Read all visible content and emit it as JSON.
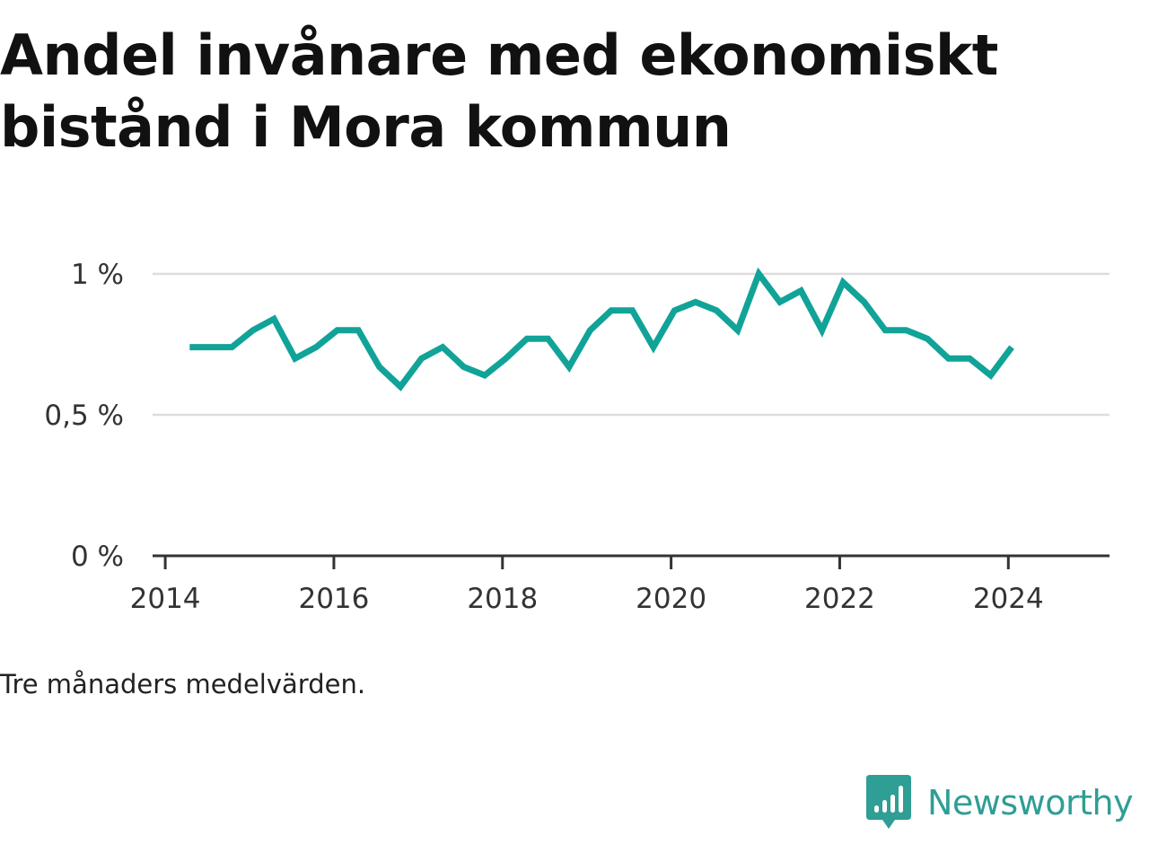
{
  "title": "Andel invånare med ekonomiskt bistånd i Mora kommun",
  "note": "Tre månaders medelvärden.",
  "brand": {
    "name": "Newsworthy",
    "logo_icon": "bar-chart-speech-bubble-icon",
    "color": "#2f9e94"
  },
  "colors": {
    "line": "#11a398",
    "grid": "#dddddd",
    "axis": "#333333"
  },
  "chart_data": {
    "type": "line",
    "title": "Andel invånare med ekonomiskt bistånd i Mora kommun",
    "xlabel": "",
    "ylabel": "",
    "xlim": [
      2013.85,
      2025.2
    ],
    "ylim": [
      0,
      1
    ],
    "y_ticks": [
      {
        "value": 0,
        "label": "0 %"
      },
      {
        "value": 0.5,
        "label": "0,5 %"
      },
      {
        "value": 1,
        "label": "1 %"
      }
    ],
    "x_ticks": [
      {
        "value": 2014,
        "label": "2014"
      },
      {
        "value": 2016,
        "label": "2016"
      },
      {
        "value": 2018,
        "label": "2018"
      },
      {
        "value": 2020,
        "label": "2020"
      },
      {
        "value": 2022,
        "label": "2022"
      },
      {
        "value": 2024,
        "label": "2024"
      }
    ],
    "grid": true,
    "legend": "none",
    "series": [
      {
        "x": [
          2014.29,
          2014.54,
          2014.79,
          2015.04,
          2015.29,
          2015.54,
          2015.79,
          2016.04,
          2016.29,
          2016.54,
          2016.79,
          2017.04,
          2017.29,
          2017.54,
          2017.79,
          2018.04,
          2018.29,
          2018.54,
          2018.79,
          2019.04,
          2019.29,
          2019.54,
          2019.79,
          2020.04,
          2020.29,
          2020.54,
          2020.79,
          2021.04,
          2021.29,
          2021.54,
          2021.79,
          2022.04,
          2022.29,
          2022.54,
          2022.79,
          2023.04,
          2023.29,
          2023.54,
          2023.79,
          2024.04
        ],
        "values": [
          0.74,
          0.74,
          0.74,
          0.8,
          0.84,
          0.7,
          0.74,
          0.8,
          0.8,
          0.67,
          0.6,
          0.7,
          0.74,
          0.67,
          0.64,
          0.7,
          0.77,
          0.77,
          0.67,
          0.8,
          0.87,
          0.87,
          0.74,
          0.87,
          0.9,
          0.87,
          0.8,
          1.0,
          0.9,
          0.94,
          0.8,
          0.97,
          0.9,
          0.8,
          0.8,
          0.77,
          0.7,
          0.7,
          0.64,
          0.74
        ]
      }
    ]
  }
}
